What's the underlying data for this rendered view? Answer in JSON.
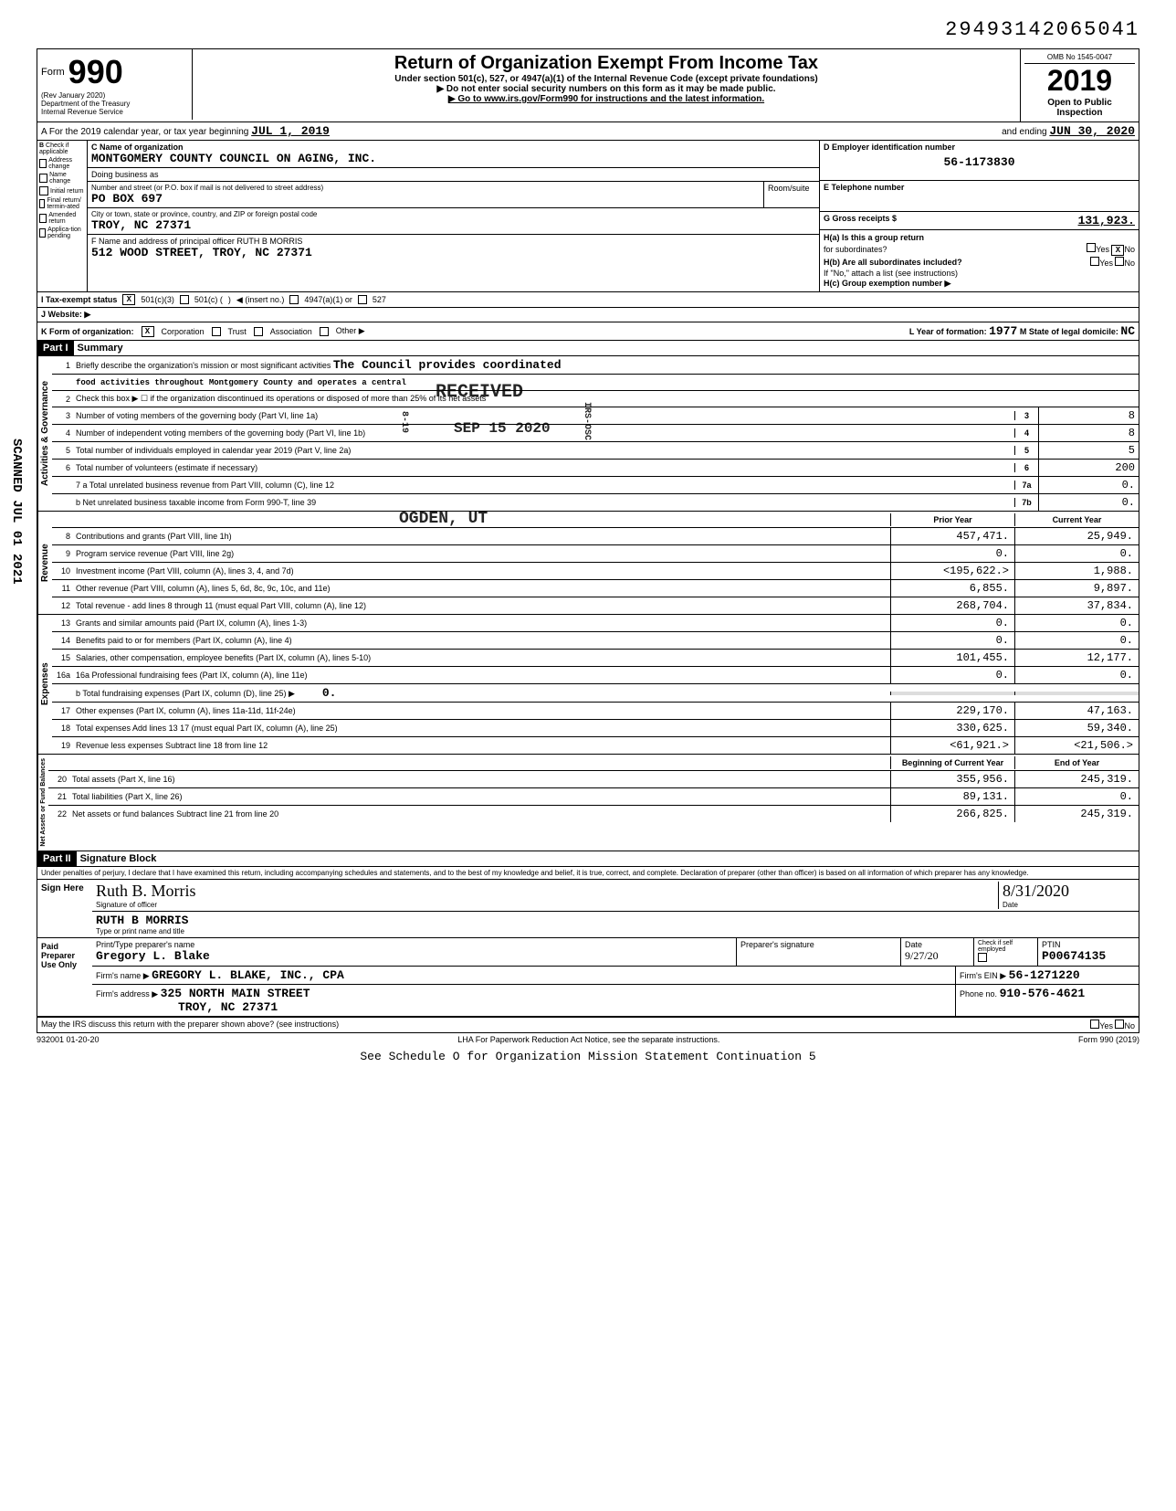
{
  "top_number": "29493142065041",
  "form": {
    "name": "990",
    "rev": "(Rev  January 2020)",
    "dept1": "Department of the Treasury",
    "dept2": "Internal Revenue Service",
    "title": "Return of Organization Exempt From Income Tax",
    "subtitle": "Under section 501(c), 527, or 4947(a)(1) of the Internal Revenue Code (except private foundations)",
    "arrow1": "▶ Do not enter social security numbers on this form as it may be made public.",
    "arrow2": "▶ Go to www.irs.gov/Form990 for instructions and the latest information.",
    "omb": "OMB No  1545-0047",
    "year": "2019",
    "open": "Open to Public",
    "inspection": "Inspection"
  },
  "cal_year": {
    "prefix": "A  For the 2019 calendar year, or tax year beginning",
    "begin": "JUL 1, 2019",
    "mid": "and ending",
    "end": "JUN 30, 2020"
  },
  "section_b": {
    "header": "B",
    "check_if": "Check if applicable",
    "items": [
      "Address change",
      "Name change",
      "Initial return",
      "Final return/ termin-ated",
      "Amended return",
      "Applica-tion pending"
    ]
  },
  "org": {
    "c_label": "C Name of organization",
    "name": "MONTGOMERY COUNTY COUNCIL ON AGING, INC.",
    "dba_label": "Doing business as",
    "addr_label": "Number and street (or P.O. box if mail is not delivered to street address)",
    "room_label": "Room/suite",
    "address": "PO BOX 697",
    "city_label": "City or town, state or province, country, and ZIP or foreign postal code",
    "city": "TROY, NC  27371",
    "officer_label": "F Name and address of principal officer RUTH B MORRIS",
    "officer_addr": "512 WOOD STREET, TROY, NC  27371"
  },
  "right": {
    "d_label": "D  Employer identification number",
    "ein": "56-1173830",
    "e_label": "E  Telephone number",
    "g_label": "G  Gross receipts $",
    "g_value": "131,923.",
    "ha_label": "H(a) Is this a group return",
    "ha_sub": "for subordinates?",
    "yes": "Yes",
    "no": "No",
    "hb_label": "H(b) Are all subordinates included?",
    "hb_note": "If \"No,\" attach a list (see instructions)",
    "hc_label": "H(c) Group exemption number ▶"
  },
  "status": {
    "label": "I  Tax-exempt status",
    "opt1": "501(c)(3)",
    "opt2": "501(c) (",
    "insert": "◀  (insert no.)",
    "opt3": "4947(a)(1) or",
    "opt4": "527"
  },
  "website": {
    "label": "J  Website: ▶"
  },
  "k_row": {
    "label": "K  Form of organization:",
    "corp": "Corporation",
    "trust": "Trust",
    "assoc": "Association",
    "other": "Other ▶",
    "l_label": "L Year of formation:",
    "l_val": "1977",
    "m_label": "M State of legal domicile:",
    "m_val": "NC"
  },
  "part1": {
    "header": "Part I",
    "title": "Summary"
  },
  "governance": {
    "label": "Activities & Governance",
    "lines": {
      "1": {
        "text": "Briefly describe the organization's mission or most significant activities",
        "val": "The Council provides coordinated"
      },
      "1b": "food activities throughout Montgomery County and operates a central",
      "2": "Check this box ▶ ☐ if the organization discontinued its operations or disposed of more than 25% of its net assets",
      "3": {
        "text": "Number of voting members of the governing body (Part VI, line 1a)",
        "n": "3",
        "v": "8"
      },
      "4": {
        "text": "Number of independent voting members of the governing body (Part VI, line 1b)",
        "n": "4",
        "v": "8"
      },
      "5": {
        "text": "Total number of individuals employed in calendar year 2019 (Part V, line 2a)",
        "n": "5",
        "v": "5"
      },
      "6": {
        "text": "Total number of volunteers (estimate if necessary)",
        "n": "6",
        "v": "200"
      },
      "7a": {
        "text": "7 a Total unrelated business revenue from Part VIII, column (C), line 12",
        "n": "7a",
        "v": "0."
      },
      "7b": {
        "text": "b Net unrelated business taxable income from Form 990-T, line 39",
        "n": "7b",
        "v": "0."
      }
    }
  },
  "revenue": {
    "label": "Revenue",
    "prior_hdr": "Prior Year",
    "current_hdr": "Current Year",
    "lines": [
      {
        "n": "8",
        "text": "Contributions and grants (Part VIII, line 1h)",
        "prior": "457,471.",
        "curr": "25,949."
      },
      {
        "n": "9",
        "text": "Program service revenue (Part VIII, line 2g)",
        "prior": "0.",
        "curr": "0."
      },
      {
        "n": "10",
        "text": "Investment income (Part VIII, column (A), lines 3, 4, and 7d)",
        "prior": "<195,622.>",
        "curr": "1,988."
      },
      {
        "n": "11",
        "text": "Other revenue (Part VIII, column (A), lines 5, 6d, 8c, 9c, 10c, and 11e)",
        "prior": "6,855.",
        "curr": "9,897."
      },
      {
        "n": "12",
        "text": "Total revenue - add lines 8 through 11 (must equal Part VIII, column (A), line 12)",
        "prior": "268,704.",
        "curr": "37,834."
      }
    ]
  },
  "expenses": {
    "label": "Expenses",
    "lines": [
      {
        "n": "13",
        "text": "Grants and similar amounts paid (Part IX, column (A), lines 1-3)",
        "prior": "0.",
        "curr": "0."
      },
      {
        "n": "14",
        "text": "Benefits paid to or for members (Part IX, column (A), line 4)",
        "prior": "0.",
        "curr": "0."
      },
      {
        "n": "15",
        "text": "Salaries, other compensation, employee benefits (Part IX, column (A), lines 5-10)",
        "prior": "101,455.",
        "curr": "12,177."
      },
      {
        "n": "16a",
        "text": "16a Professional fundraising fees (Part IX, column (A), line 11e)",
        "prior": "0.",
        "curr": "0."
      },
      {
        "n": "",
        "text": "b Total fundraising expenses (Part IX, column (D), line 25)    ▶",
        "inline": "0.",
        "prior": "",
        "curr": ""
      },
      {
        "n": "17",
        "text": "Other expenses (Part IX, column (A), lines 11a-11d, 11f-24e)",
        "prior": "229,170.",
        "curr": "47,163."
      },
      {
        "n": "18",
        "text": "Total expenses  Add lines 13 17 (must equal Part IX, column (A), line 25)",
        "prior": "330,625.",
        "curr": "59,340."
      },
      {
        "n": "19",
        "text": "Revenue less expenses  Subtract line 18 from line 12",
        "prior": "<61,921.>",
        "curr": "<21,506.>"
      }
    ]
  },
  "netassets": {
    "label": "Net Assets or Fund Balances",
    "begin_hdr": "Beginning of Current Year",
    "end_hdr": "End of Year",
    "lines": [
      {
        "n": "20",
        "text": "Total assets (Part X, line 16)",
        "prior": "355,956.",
        "curr": "245,319."
      },
      {
        "n": "21",
        "text": "Total liabilities (Part X, line 26)",
        "prior": "89,131.",
        "curr": "0."
      },
      {
        "n": "22",
        "text": "Net assets or fund balances  Subtract line 21 from line 20",
        "prior": "266,825.",
        "curr": "245,319."
      }
    ]
  },
  "part2": {
    "header": "Part II",
    "title": "Signature Block"
  },
  "perjury": "Under penalties of perjury, I declare that I have examined this return, including accompanying schedules and statements, and to the best of my knowledge and belief, it is true, correct, and complete. Declaration of preparer (other than officer) is based on all information of which preparer has any knowledge.",
  "sign": {
    "here": "Sign Here",
    "sig_name": "Ruth B. Morris",
    "sig_label": "Signature of officer",
    "date_label": "Date",
    "date": "8/31/2020",
    "printed": "RUTH B MORRIS",
    "printed_label": "Type or print name and title"
  },
  "preparer": {
    "left": "Paid Preparer Use Only",
    "print_label": "Print/Type preparer's name",
    "name": "Gregory L. Blake",
    "sig_label": "Preparer's signature",
    "date_label": "Date",
    "date": "9/27/20",
    "check_label": "Check if self employed",
    "ptin_label": "PTIN",
    "ptin": "P00674135",
    "firm_label": "Firm's name ▶",
    "firm": "GREGORY L. BLAKE, INC., CPA",
    "ein_label": "Firm's EIN ▶",
    "ein": "56-1271220",
    "addr_label": "Firm's address ▶",
    "addr1": "325 NORTH MAIN STREET",
    "addr2": "TROY, NC 27371",
    "phone_label": "Phone no.",
    "phone": "910-576-4621"
  },
  "discuss": {
    "text": "May the IRS discuss this return with the preparer shown above? (see instructions)",
    "yes": "Yes",
    "no": "No"
  },
  "footer": {
    "left": "932001 01-20-20",
    "mid": "LHA  For Paperwork Reduction Act Notice, see the separate instructions.",
    "right": "Form 990 (2019)"
  },
  "continuation": "See Schedule O for Organization Mission Statement Continuation 5",
  "stamps": {
    "received": "RECEIVED",
    "date": "SEP 15 2020",
    "ogden": "OGDEN, UT",
    "side": "SCANNED JUL 01 2021",
    "code1": "8-19",
    "code2": "IRS-OSC"
  }
}
